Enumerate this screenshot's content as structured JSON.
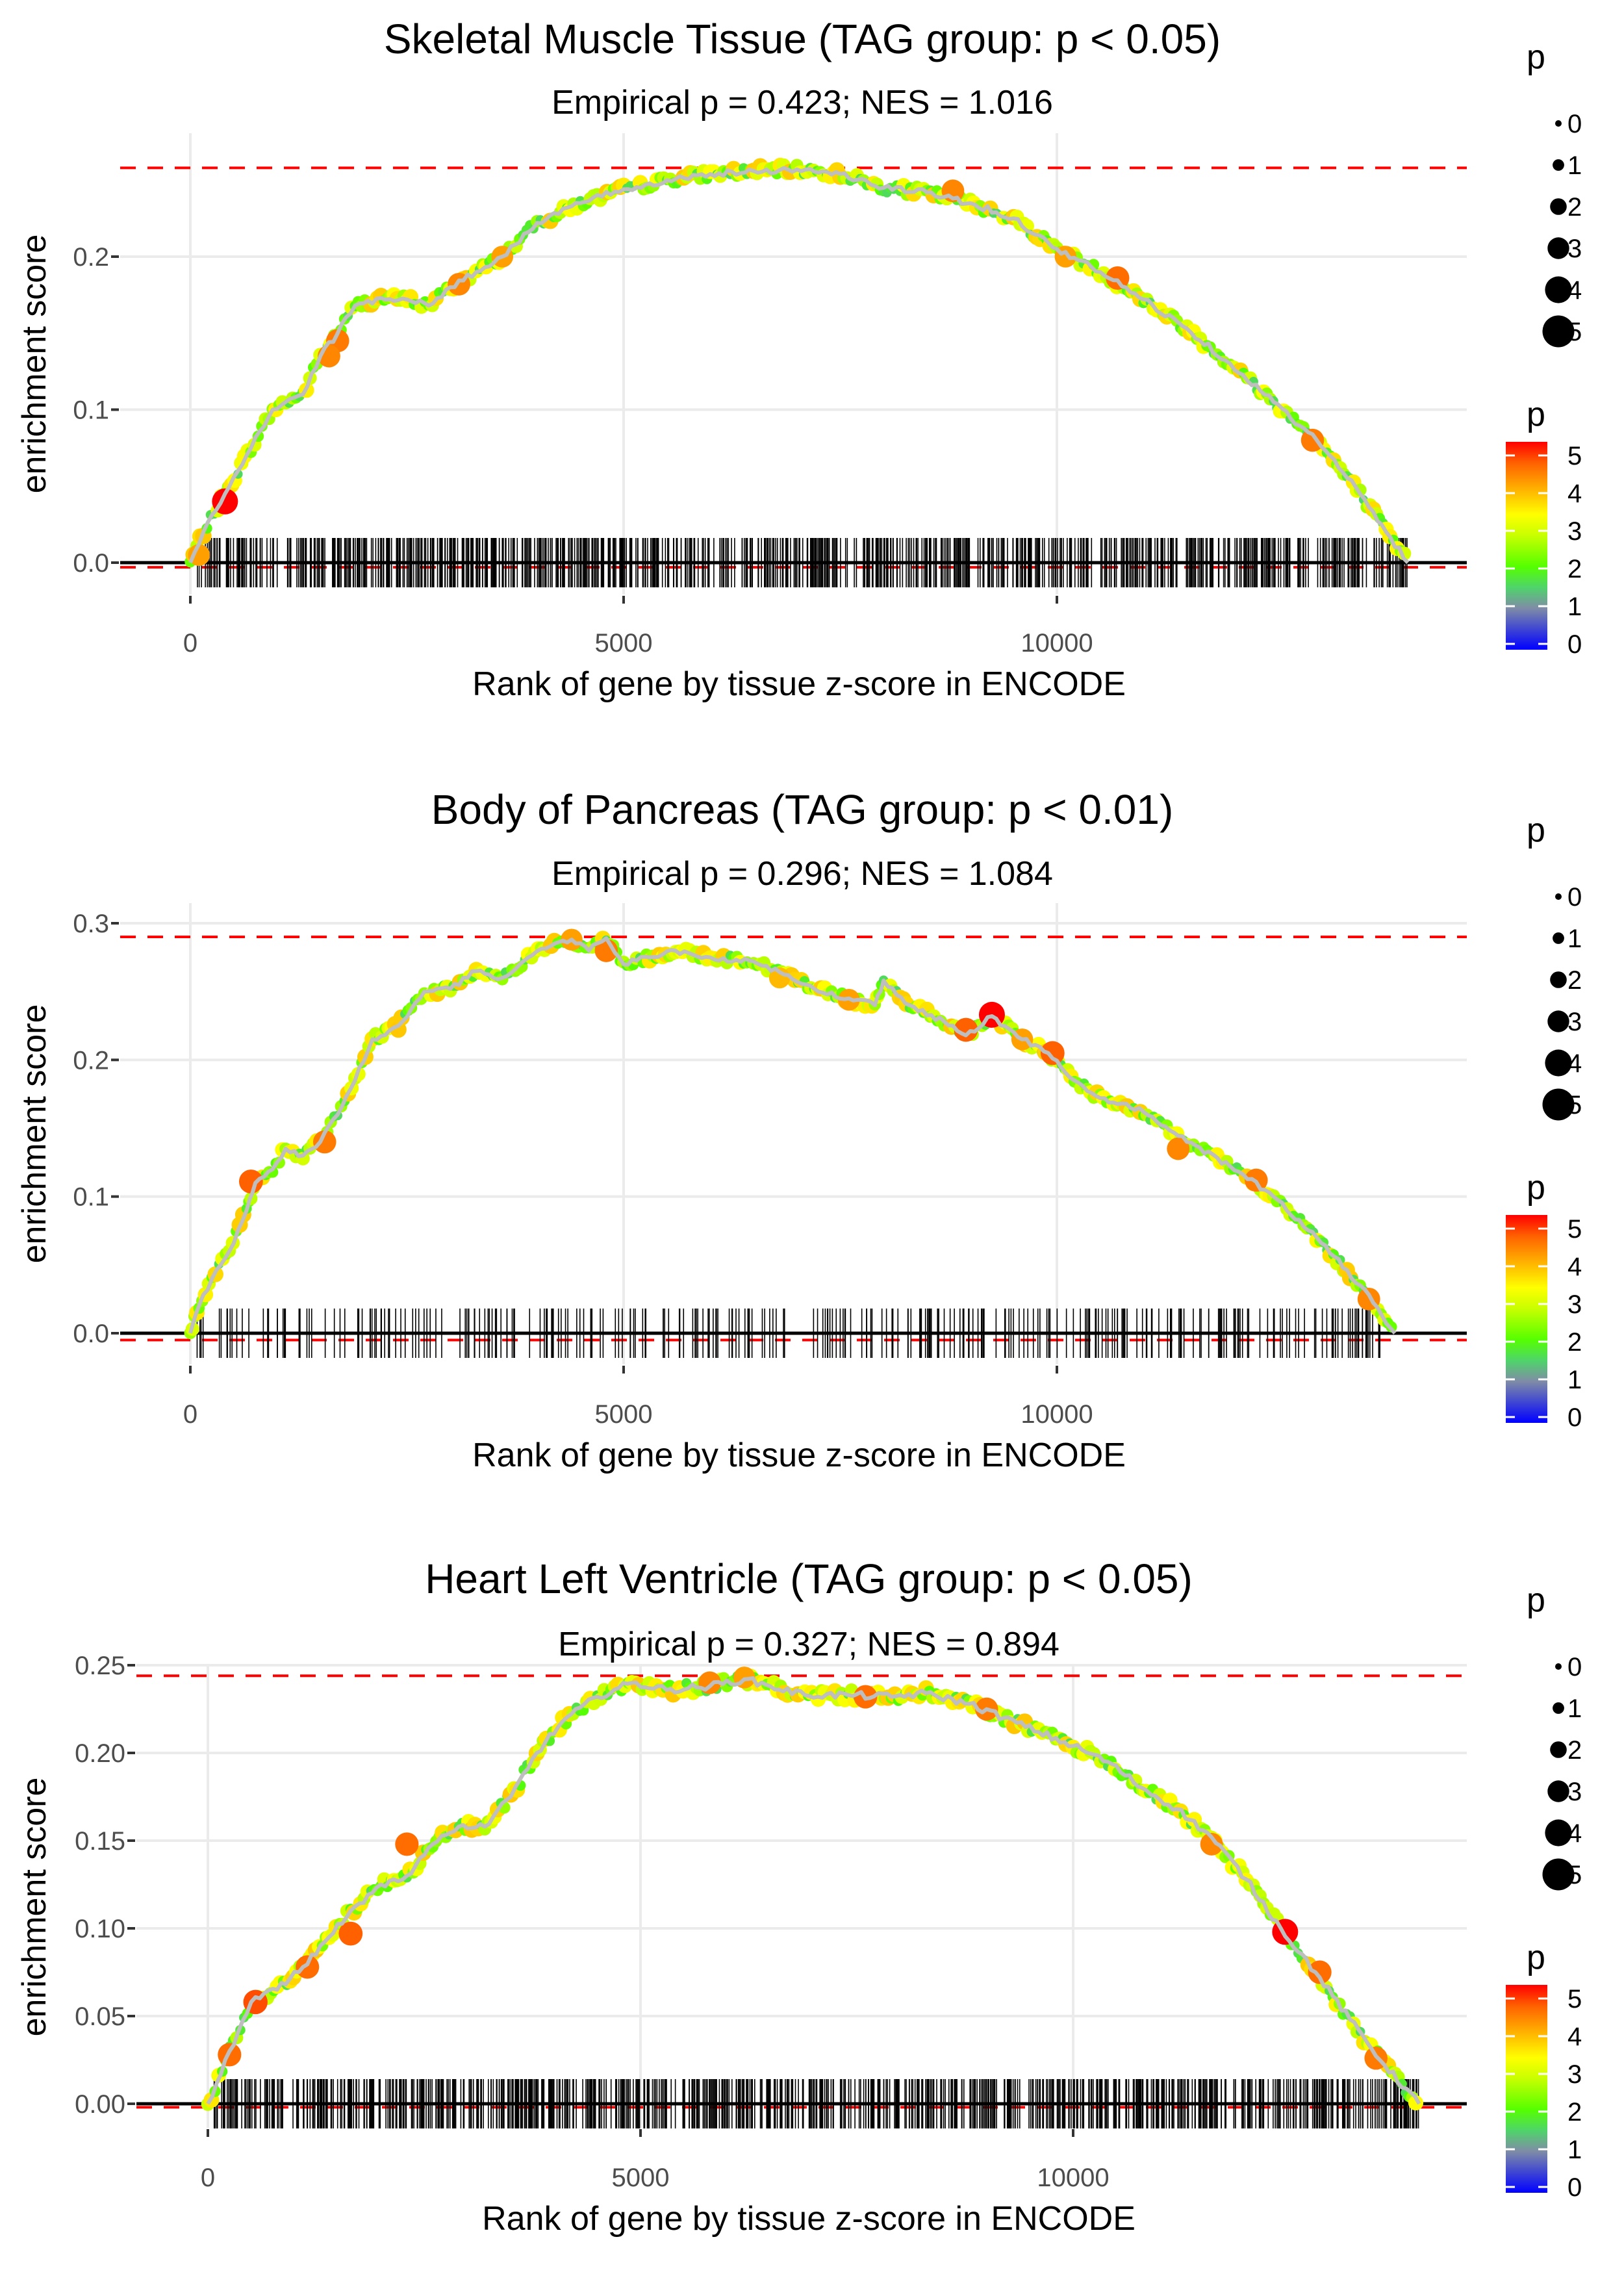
{
  "figure": {
    "xlabel": "Rank of gene by tissue z-score in ENCODE",
    "ylabel": "enrichment score",
    "legend_size_title": "p",
    "legend_color_title": "p",
    "legend_size_labels": [
      "0",
      "1",
      "2",
      "3",
      "4",
      "5"
    ],
    "legend_color_labels": [
      "5",
      "4",
      "3",
      "2",
      "1",
      "0"
    ],
    "colors": {
      "curve_line": "#bebebe",
      "dashed_reference": "#ff0000",
      "zero_line": "#000000",
      "barcode": "#000000",
      "gridline": "#ebebeb",
      "colorscale": [
        "#0000ff",
        "#7f8ca6",
        "#33f033",
        "#55ff00",
        "#c8ff00",
        "#ffff00",
        "#ffa000",
        "#ff5000",
        "#ff0000"
      ]
    }
  },
  "chart_data": [
    {
      "type": "line",
      "title": "Skeletal Muscle Tissue (TAG group: p < 0.05)",
      "subtitle": "Empirical p = 0.423; NES = 1.016",
      "xlabel": "Rank of gene by tissue z-score in ENCODE",
      "ylabel": "enrichment score",
      "xlim": [
        -500,
        14500
      ],
      "ylim": [
        -0.02,
        0.27
      ],
      "xticks": [
        0,
        5000,
        10000
      ],
      "xtick_labels": [
        "0",
        "5000",
        "10000"
      ],
      "yticks": [
        0.0,
        0.1,
        0.2
      ],
      "ytick_labels": [
        "0.0",
        "0.1",
        "0.2"
      ],
      "max_es_line": 0.258,
      "min_es_line": -0.003,
      "gene_count_range": [
        0,
        14050
      ],
      "barcode_density": "dense",
      "curve": [
        [
          0,
          0
        ],
        [
          150,
          0.02
        ],
        [
          400,
          0.045
        ],
        [
          700,
          0.075
        ],
        [
          950,
          0.1
        ],
        [
          1100,
          0.105
        ],
        [
          1300,
          0.11
        ],
        [
          1500,
          0.135
        ],
        [
          1700,
          0.15
        ],
        [
          1900,
          0.168
        ],
        [
          2200,
          0.173
        ],
        [
          2500,
          0.172
        ],
        [
          2750,
          0.168
        ],
        [
          3000,
          0.18
        ],
        [
          3300,
          0.19
        ],
        [
          3600,
          0.2
        ],
        [
          4000,
          0.222
        ],
        [
          4500,
          0.235
        ],
        [
          5000,
          0.244
        ],
        [
          5500,
          0.25
        ],
        [
          6000,
          0.254
        ],
        [
          6500,
          0.256
        ],
        [
          7000,
          0.257
        ],
        [
          7500,
          0.254
        ],
        [
          8000,
          0.245
        ],
        [
          8500,
          0.242
        ],
        [
          9000,
          0.235
        ],
        [
          9500,
          0.225
        ],
        [
          10000,
          0.205
        ],
        [
          10500,
          0.19
        ],
        [
          11000,
          0.172
        ],
        [
          11500,
          0.153
        ],
        [
          12000,
          0.13
        ],
        [
          12500,
          0.105
        ],
        [
          13000,
          0.08
        ],
        [
          13500,
          0.045
        ],
        [
          13800,
          0.02
        ],
        [
          14050,
          0.0
        ]
      ],
      "highlight_points": [
        [
          400,
          0.04,
          5
        ],
        [
          1700,
          0.145,
          4.3
        ],
        [
          1600,
          0.135,
          4.2
        ],
        [
          3100,
          0.182,
          4.2
        ],
        [
          3600,
          0.2,
          4
        ],
        [
          8800,
          0.243,
          4.2
        ],
        [
          10100,
          0.2,
          4
        ],
        [
          10700,
          0.186,
          4.4
        ],
        [
          12950,
          0.08,
          4.3
        ],
        [
          100,
          0.005,
          4
        ]
      ]
    },
    {
      "type": "line",
      "title": "Body of Pancreas (TAG group: p < 0.01)",
      "subtitle": "Empirical p = 0.296; NES = 1.084",
      "xlabel": "Rank of gene by tissue z-score in ENCODE",
      "ylabel": "enrichment score",
      "xlim": [
        -500,
        14500
      ],
      "ylim": [
        -0.015,
        0.305
      ],
      "xticks": [
        0,
        5000,
        10000
      ],
      "xtick_labels": [
        "0",
        "5000",
        "10000"
      ],
      "yticks": [
        0.0,
        0.1,
        0.2,
        0.3
      ],
      "ytick_labels": [
        "0.0",
        "0.1",
        "0.2",
        "0.3"
      ],
      "max_es_line": 0.29,
      "min_es_line": -0.005,
      "gene_count_range": [
        0,
        13900
      ],
      "barcode_density": "sparse",
      "curve": [
        [
          0,
          0
        ],
        [
          100,
          0.02
        ],
        [
          250,
          0.04
        ],
        [
          450,
          0.06
        ],
        [
          650,
          0.09
        ],
        [
          750,
          0.11
        ],
        [
          950,
          0.12
        ],
        [
          1100,
          0.135
        ],
        [
          1300,
          0.13
        ],
        [
          1500,
          0.14
        ],
        [
          1700,
          0.16
        ],
        [
          1900,
          0.185
        ],
        [
          2100,
          0.215
        ],
        [
          2400,
          0.225
        ],
        [
          2700,
          0.25
        ],
        [
          3000,
          0.252
        ],
        [
          3300,
          0.265
        ],
        [
          3600,
          0.26
        ],
        [
          3900,
          0.275
        ],
        [
          4200,
          0.285
        ],
        [
          4400,
          0.288
        ],
        [
          4600,
          0.28
        ],
        [
          4800,
          0.289
        ],
        [
          5000,
          0.27
        ],
        [
          5300,
          0.275
        ],
        [
          5600,
          0.28
        ],
        [
          6000,
          0.275
        ],
        [
          6500,
          0.272
        ],
        [
          6900,
          0.262
        ],
        [
          7200,
          0.252
        ],
        [
          7600,
          0.245
        ],
        [
          7900,
          0.24
        ],
        [
          8000,
          0.258
        ],
        [
          8300,
          0.24
        ],
        [
          8700,
          0.228
        ],
        [
          8950,
          0.218
        ],
        [
          9250,
          0.232
        ],
        [
          9600,
          0.215
        ],
        [
          9900,
          0.205
        ],
        [
          10200,
          0.185
        ],
        [
          10500,
          0.172
        ],
        [
          11000,
          0.162
        ],
        [
          11500,
          0.14
        ],
        [
          12000,
          0.122
        ],
        [
          12500,
          0.1
        ],
        [
          13000,
          0.07
        ],
        [
          13500,
          0.035
        ],
        [
          13900,
          0.0
        ]
      ],
      "highlight_points": [
        [
          700,
          0.111,
          4.5
        ],
        [
          1550,
          0.14,
          4.3
        ],
        [
          4400,
          0.288,
          4
        ],
        [
          4800,
          0.28,
          4.3
        ],
        [
          6800,
          0.26,
          3.8
        ],
        [
          7600,
          0.244,
          4
        ],
        [
          8950,
          0.222,
          4.5
        ],
        [
          9250,
          0.233,
          5
        ],
        [
          9600,
          0.215,
          4
        ],
        [
          9950,
          0.205,
          4.5
        ],
        [
          11400,
          0.135,
          4.2
        ],
        [
          12300,
          0.112,
          4.3
        ],
        [
          13600,
          0.025,
          4.2
        ]
      ]
    },
    {
      "type": "line",
      "title": "Heart Left Ventricle (TAG group: p < 0.05)",
      "subtitle": "Empirical p = 0.327; NES = 0.894",
      "xlabel": "Rank of gene by tissue z-score in ENCODE",
      "ylabel": "enrichment score",
      "xlim": [
        -500,
        14500
      ],
      "ylim": [
        -0.01,
        0.255
      ],
      "xticks": [
        0,
        5000,
        10000
      ],
      "xtick_labels": [
        "0",
        "5000",
        "10000"
      ],
      "yticks": [
        0.0,
        0.05,
        0.1,
        0.15,
        0.2,
        0.25
      ],
      "ytick_labels": [
        "0.00",
        "0.05",
        "0.10",
        "0.15",
        "0.20",
        "0.25"
      ],
      "max_es_line": 0.244,
      "min_es_line": -0.002,
      "gene_count_range": [
        0,
        14000
      ],
      "barcode_density": "dense",
      "curve": [
        [
          0,
          0
        ],
        [
          250,
          0.03
        ],
        [
          500,
          0.058
        ],
        [
          800,
          0.065
        ],
        [
          1100,
          0.078
        ],
        [
          1400,
          0.095
        ],
        [
          1650,
          0.11
        ],
        [
          2000,
          0.125
        ],
        [
          2300,
          0.13
        ],
        [
          2600,
          0.148
        ],
        [
          2900,
          0.158
        ],
        [
          3200,
          0.158
        ],
        [
          3500,
          0.175
        ],
        [
          3800,
          0.2
        ],
        [
          4100,
          0.218
        ],
        [
          4500,
          0.232
        ],
        [
          4900,
          0.24
        ],
        [
          5300,
          0.236
        ],
        [
          5800,
          0.238
        ],
        [
          6200,
          0.242
        ],
        [
          6500,
          0.238
        ],
        [
          6900,
          0.233
        ],
        [
          7400,
          0.233
        ],
        [
          7900,
          0.232
        ],
        [
          8300,
          0.234
        ],
        [
          8800,
          0.228
        ],
        [
          9200,
          0.22
        ],
        [
          9600,
          0.212
        ],
        [
          10000,
          0.204
        ],
        [
          10400,
          0.195
        ],
        [
          10800,
          0.18
        ],
        [
          11200,
          0.168
        ],
        [
          11600,
          0.152
        ],
        [
          12000,
          0.128
        ],
        [
          12400,
          0.1
        ],
        [
          12800,
          0.075
        ],
        [
          13200,
          0.048
        ],
        [
          13600,
          0.022
        ],
        [
          14000,
          0.0
        ]
      ],
      "highlight_points": [
        [
          250,
          0.028,
          4.4
        ],
        [
          550,
          0.058,
          4.6
        ],
        [
          1150,
          0.078,
          4.4
        ],
        [
          1650,
          0.097,
          4.5
        ],
        [
          2300,
          0.148,
          4.4
        ],
        [
          5800,
          0.24,
          4.2
        ],
        [
          6200,
          0.243,
          4
        ],
        [
          7600,
          0.232,
          4.4
        ],
        [
          9000,
          0.225,
          4.3
        ],
        [
          11600,
          0.148,
          4.2
        ],
        [
          12450,
          0.098,
          5
        ],
        [
          12850,
          0.075,
          4.4
        ],
        [
          13500,
          0.026,
          4.3
        ]
      ]
    }
  ]
}
